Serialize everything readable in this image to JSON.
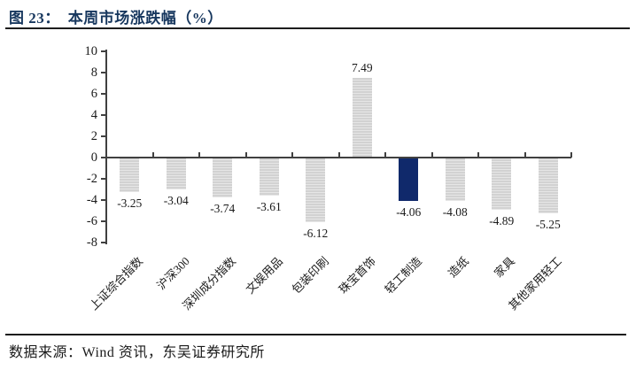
{
  "header": {
    "figure_label": "图 23：",
    "title": "本周市场涨跌幅（%）"
  },
  "footer": {
    "source": "数据来源：Wind 资讯，东吴证券研究所"
  },
  "chart_data": {
    "type": "bar",
    "title": "本周市场涨跌幅（%）",
    "categories": [
      "上证综合指数",
      "沪深300",
      "深圳成分指数",
      "文娱用品",
      "包装印刷",
      "珠宝首饰",
      "轻工制造",
      "造纸",
      "家具",
      "其他家用轻工"
    ],
    "values": [
      -3.25,
      -3.04,
      -3.74,
      -3.61,
      -6.12,
      7.49,
      -4.06,
      -4.08,
      -4.89,
      -5.25
    ],
    "highlight_index": 6,
    "ylim": [
      -8,
      10
    ],
    "ytick_step": 2,
    "grid": false,
    "value_labels": true,
    "legend": "none",
    "colors": {
      "bar": "#D9D9D9",
      "highlight": "#10296B",
      "axis": "#404040",
      "text": "#1A1A1A",
      "title": "#17375E"
    }
  }
}
